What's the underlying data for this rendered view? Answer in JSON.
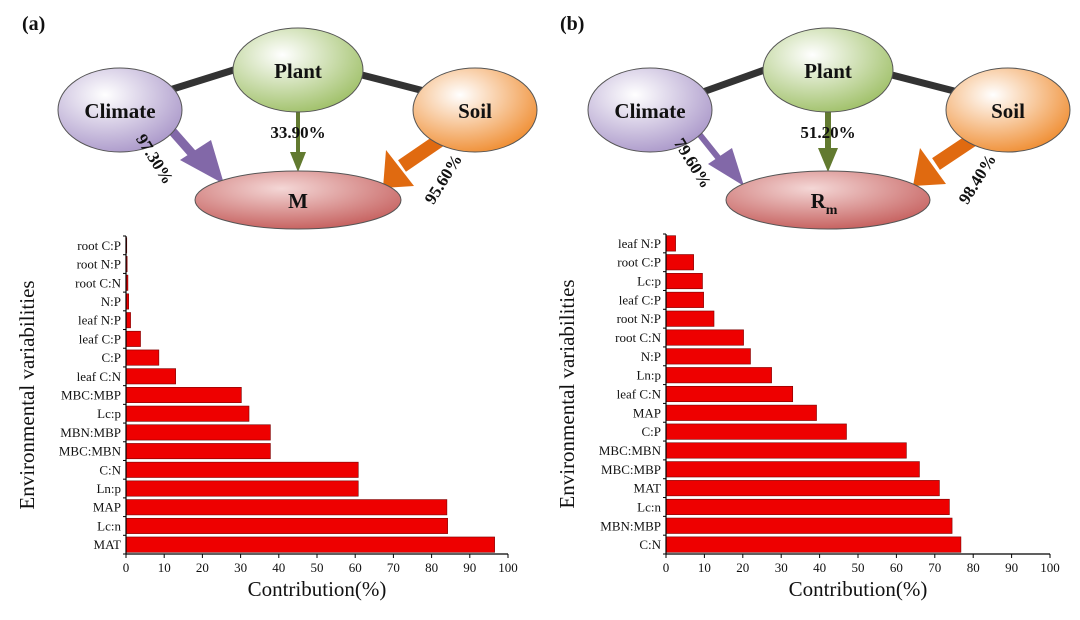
{
  "colors": {
    "climate": "#a895c8",
    "plant": "#9cbe63",
    "soil": "#ef8a2c",
    "response": "#c45c5a",
    "bar": "#ee0000",
    "climate_arrow": "#8268a8",
    "plant_arrow": "#627a30",
    "soil_arrow": "#e06a10",
    "connector": "#333333"
  },
  "panels": [
    {
      "label": "(a)",
      "nodes": {
        "climate": "Climate",
        "plant": "Plant",
        "soil": "Soil",
        "response": "M",
        "response_sub": ""
      },
      "paths": {
        "climate": "97.30%",
        "plant": "33.90%",
        "soil": "95.60%"
      }
    },
    {
      "label": "(b)",
      "nodes": {
        "climate": "Climate",
        "plant": "Plant",
        "soil": "Soil",
        "response": "R",
        "response_sub": "m"
      },
      "paths": {
        "climate": "79.60%",
        "plant": "51.20%",
        "soil": "98.40%"
      }
    }
  ],
  "chart_data": [
    {
      "type": "bar",
      "orientation": "horizontal",
      "title": "",
      "xlabel": "Contribution(%)",
      "ylabel": "Environmental variabilities",
      "xlim": [
        0,
        100
      ],
      "xticks": [
        0,
        10,
        20,
        30,
        40,
        50,
        60,
        70,
        80,
        90,
        100
      ],
      "grid": false,
      "categories": [
        "root C:P",
        "root N:P",
        "root C:N",
        "N:P",
        "leaf N:P",
        "leaf C:P",
        "C:P",
        "leaf C:N",
        "MBC:MBP",
        "Lc:p",
        "MBN:MBP",
        "MBC:MBN",
        "C:N",
        "Ln:p",
        "MAP",
        "Lc:n",
        "MAT"
      ],
      "values": [
        0.2,
        0.3,
        0.5,
        0.7,
        1.2,
        3.8,
        8.6,
        13.0,
        30.2,
        32.2,
        37.8,
        37.8,
        60.8,
        60.8,
        84.0,
        84.2,
        96.5
      ]
    },
    {
      "type": "bar",
      "orientation": "horizontal",
      "title": "",
      "xlabel": "Contribution(%)",
      "ylabel": "Environmental variabilities",
      "xlim": [
        0,
        100
      ],
      "xticks": [
        0,
        10,
        20,
        30,
        40,
        50,
        60,
        70,
        80,
        90,
        100
      ],
      "grid": false,
      "categories": [
        "leaf N:P",
        "root C:P",
        "Lc:p",
        "leaf C:P",
        "root N:P",
        "root C:N",
        "N:P",
        "Ln:p",
        "leaf C:N",
        "MAP",
        "C:P",
        "MBC:MBN",
        "MBC:MBP",
        "MAT",
        "Lc:n",
        "MBN:MBP",
        "C:N"
      ],
      "values": [
        2.5,
        7.2,
        9.5,
        9.8,
        12.5,
        20.2,
        22.0,
        27.5,
        33.0,
        39.2,
        47.0,
        62.6,
        66.0,
        71.2,
        73.8,
        74.5,
        76.8
      ]
    }
  ]
}
